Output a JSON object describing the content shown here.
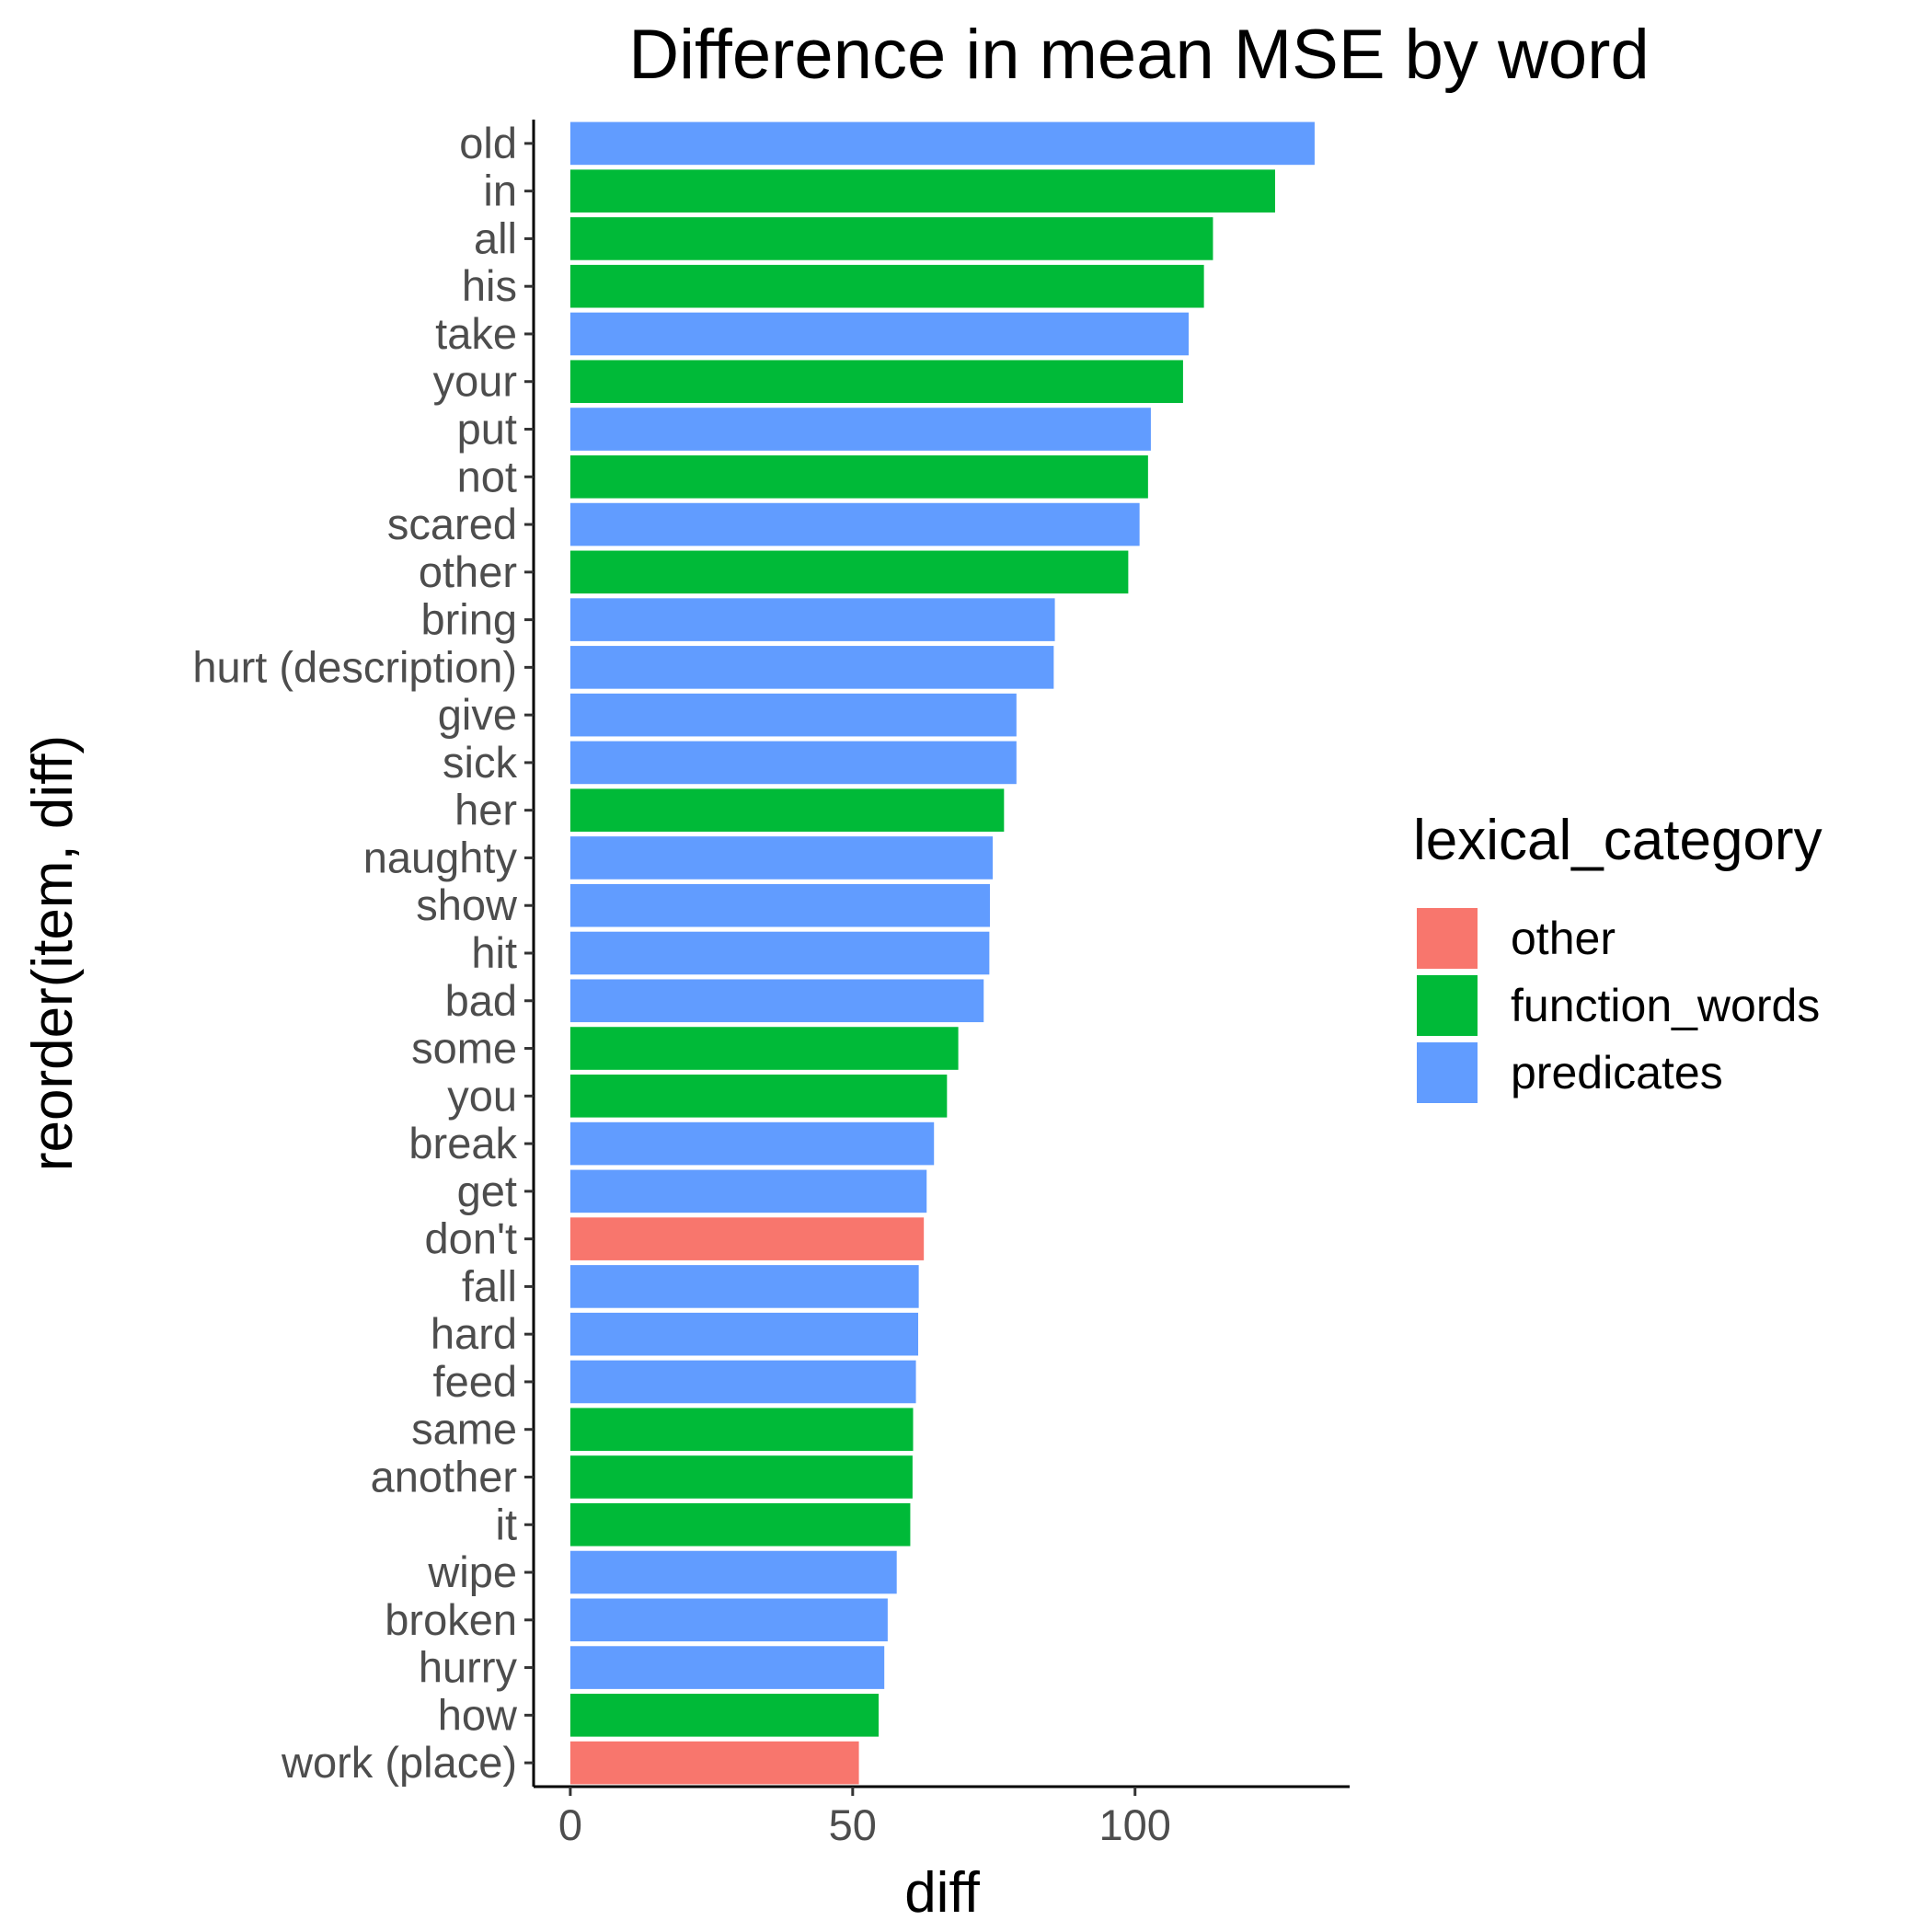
{
  "chart_data": {
    "type": "bar",
    "orientation": "horizontal",
    "title": "Difference in mean MSE by word",
    "xlabel": "diff",
    "ylabel": "reorder(item, diff)",
    "xlim": [
      -6.5,
      138
    ],
    "x_ticks": [
      0,
      50,
      100
    ],
    "grid": false,
    "legend": {
      "title": "lexical_category",
      "position": "right",
      "entries": [
        {
          "name": "other",
          "color": "#F8766D"
        },
        {
          "name": "function_words",
          "color": "#00BA38"
        },
        {
          "name": "predicates",
          "color": "#619CFF"
        }
      ]
    },
    "bars": [
      {
        "label": "old",
        "value": 131.8,
        "category": "predicates"
      },
      {
        "label": "in",
        "value": 124.8,
        "category": "function_words"
      },
      {
        "label": "all",
        "value": 113.8,
        "category": "function_words"
      },
      {
        "label": "his",
        "value": 112.2,
        "category": "function_words"
      },
      {
        "label": "take",
        "value": 109.5,
        "category": "predicates"
      },
      {
        "label": "your",
        "value": 108.5,
        "category": "function_words"
      },
      {
        "label": "put",
        "value": 102.8,
        "category": "predicates"
      },
      {
        "label": "not",
        "value": 102.3,
        "category": "function_words"
      },
      {
        "label": "scared",
        "value": 100.8,
        "category": "predicates"
      },
      {
        "label": "other",
        "value": 98.8,
        "category": "function_words"
      },
      {
        "label": "bring",
        "value": 85.8,
        "category": "predicates"
      },
      {
        "label": "hurt (description)",
        "value": 85.6,
        "category": "predicates"
      },
      {
        "label": "give",
        "value": 79.0,
        "category": "predicates"
      },
      {
        "label": "sick",
        "value": 79.0,
        "category": "predicates"
      },
      {
        "label": "her",
        "value": 76.8,
        "category": "function_words"
      },
      {
        "label": "naughty",
        "value": 74.8,
        "category": "predicates"
      },
      {
        "label": "show",
        "value": 74.3,
        "category": "predicates"
      },
      {
        "label": "hit",
        "value": 74.2,
        "category": "predicates"
      },
      {
        "label": "bad",
        "value": 73.2,
        "category": "predicates"
      },
      {
        "label": "some",
        "value": 68.7,
        "category": "function_words"
      },
      {
        "label": "you",
        "value": 66.7,
        "category": "function_words"
      },
      {
        "label": "break",
        "value": 64.4,
        "category": "predicates"
      },
      {
        "label": "get",
        "value": 63.1,
        "category": "predicates"
      },
      {
        "label": "don't",
        "value": 62.6,
        "category": "other"
      },
      {
        "label": "fall",
        "value": 61.7,
        "category": "predicates"
      },
      {
        "label": "hard",
        "value": 61.6,
        "category": "predicates"
      },
      {
        "label": "feed",
        "value": 61.2,
        "category": "predicates"
      },
      {
        "label": "same",
        "value": 60.7,
        "category": "function_words"
      },
      {
        "label": "another",
        "value": 60.6,
        "category": "function_words"
      },
      {
        "label": "it",
        "value": 60.2,
        "category": "function_words"
      },
      {
        "label": "wipe",
        "value": 57.8,
        "category": "predicates"
      },
      {
        "label": "broken",
        "value": 56.2,
        "category": "predicates"
      },
      {
        "label": "hurry",
        "value": 55.6,
        "category": "predicates"
      },
      {
        "label": "how",
        "value": 54.6,
        "category": "function_words"
      },
      {
        "label": "work (place)",
        "value": 51.1,
        "category": "other"
      }
    ]
  }
}
